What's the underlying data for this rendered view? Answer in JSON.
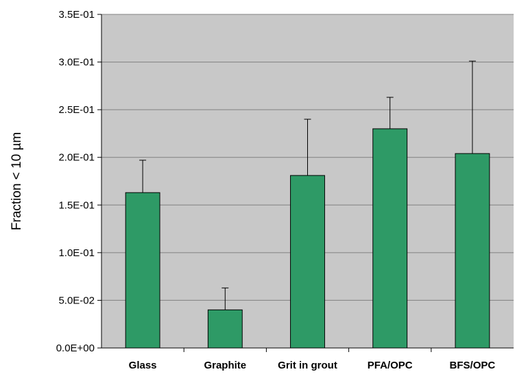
{
  "chart_data": {
    "type": "bar",
    "title": "",
    "xlabel": "",
    "ylabel": "Fraction < 10 µm",
    "categories": [
      "Glass",
      "Graphite",
      "Grit in grout",
      "PFA/OPC",
      "BFS/OPC"
    ],
    "values": [
      0.163,
      0.04,
      0.181,
      0.23,
      0.204
    ],
    "error_upper": [
      0.197,
      0.063,
      0.24,
      0.263,
      0.301
    ],
    "ylim": [
      0,
      0.35
    ],
    "yticks": [
      0,
      0.05,
      0.1,
      0.15,
      0.2,
      0.25,
      0.3,
      0.35
    ],
    "ytick_labels": [
      "0.0E+00",
      "5.0E-02",
      "1.0E-01",
      "1.5E-01",
      "2.0E-01",
      "2.5E-01",
      "3.0E-01",
      "3.5E-01"
    ],
    "grid": true,
    "legend": "none",
    "colors": {
      "bar": "#2e9a66",
      "plot_background": "#c8c8c8",
      "gridline": "#808080"
    }
  }
}
